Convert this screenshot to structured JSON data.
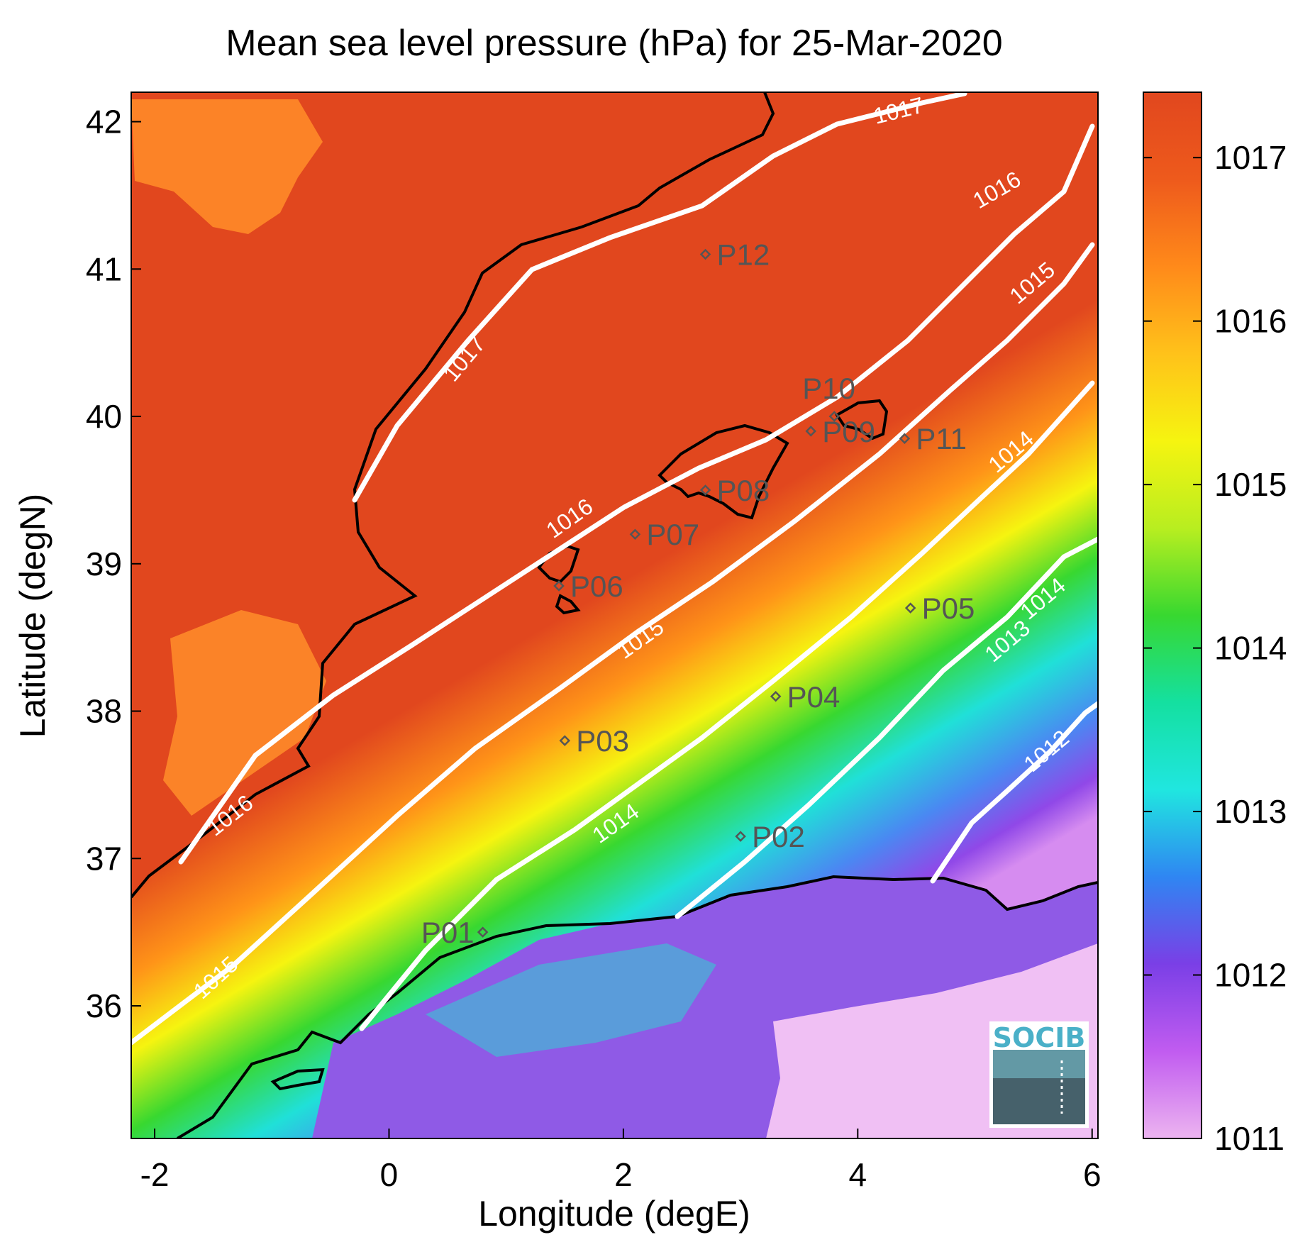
{
  "title": "Mean sea level pressure (hPa) for 25-Mar-2020",
  "xlabel": "Longitude (degE)",
  "ylabel": "Latitude (degN)",
  "x_ticks": [
    "-2",
    "0",
    "2",
    "4",
    "6"
  ],
  "y_ticks": [
    "36",
    "37",
    "38",
    "39",
    "40",
    "41",
    "42"
  ],
  "colorbar": {
    "ticks": [
      "1011",
      "1012",
      "1013",
      "1014",
      "1015",
      "1016",
      "1017"
    ],
    "colors": [
      "#ecb4f0",
      "#c15cf0",
      "#7a3fe6",
      "#2f86f2",
      "#20e6e0",
      "#14e0a0",
      "#38d830",
      "#b8ee20",
      "#f6f410",
      "#ffc21a",
      "#ff8a1a",
      "#ee5a1c",
      "#e1471e"
    ]
  },
  "logo": "SOCIB",
  "contour_labels": [
    "1017",
    "1017",
    "1016",
    "1016",
    "1016",
    "1015",
    "1015",
    "1015",
    "1014",
    "1014",
    "1014",
    "1013",
    "1012"
  ],
  "points": [
    {
      "label": "P01",
      "lon": 0.8,
      "lat": 36.5
    },
    {
      "label": "P02",
      "lon": 3.0,
      "lat": 37.15
    },
    {
      "label": "P03",
      "lon": 1.5,
      "lat": 37.8
    },
    {
      "label": "P04",
      "lon": 3.3,
      "lat": 38.1
    },
    {
      "label": "P05",
      "lon": 4.45,
      "lat": 38.7
    },
    {
      "label": "P06",
      "lon": 1.45,
      "lat": 38.85
    },
    {
      "label": "P07",
      "lon": 2.1,
      "lat": 39.2
    },
    {
      "label": "P08",
      "lon": 2.7,
      "lat": 39.5
    },
    {
      "label": "P09",
      "lon": 3.6,
      "lat": 39.9
    },
    {
      "label": "P10",
      "lon": 3.8,
      "lat": 40.0
    },
    {
      "label": "P11",
      "lon": 4.4,
      "lat": 39.85
    },
    {
      "label": "P12",
      "lon": 2.7,
      "lat": 41.1
    }
  ],
  "chart_data": {
    "type": "heatmap",
    "title": "Mean sea level pressure (hPa) for 25-Mar-2020",
    "xlabel": "Longitude (degE)",
    "ylabel": "Latitude (degN)",
    "xlim": [
      -2.2,
      6.05
    ],
    "ylim": [
      35.1,
      42.2
    ],
    "clim": [
      1011,
      1017.4
    ],
    "contour_levels": [
      1012,
      1013,
      1014,
      1015,
      1016,
      1017
    ],
    "sample_field": [
      {
        "lon": -2.0,
        "lat": 42.0,
        "value": 1017.3
      },
      {
        "lon": 2.7,
        "lat": 41.1,
        "value": 1016.8
      },
      {
        "lon": 1.5,
        "lat": 38.9,
        "value": 1016.1
      },
      {
        "lon": 2.1,
        "lat": 39.2,
        "value": 1015.6
      },
      {
        "lon": 1.5,
        "lat": 37.8,
        "value": 1014.8
      },
      {
        "lon": 3.3,
        "lat": 38.1,
        "value": 1013.8
      },
      {
        "lon": 4.45,
        "lat": 38.7,
        "value": 1013.5
      },
      {
        "lon": 3.0,
        "lat": 37.15,
        "value": 1013.2
      },
      {
        "lon": 5.5,
        "lat": 36.2,
        "value": 1011.2
      }
    ]
  }
}
